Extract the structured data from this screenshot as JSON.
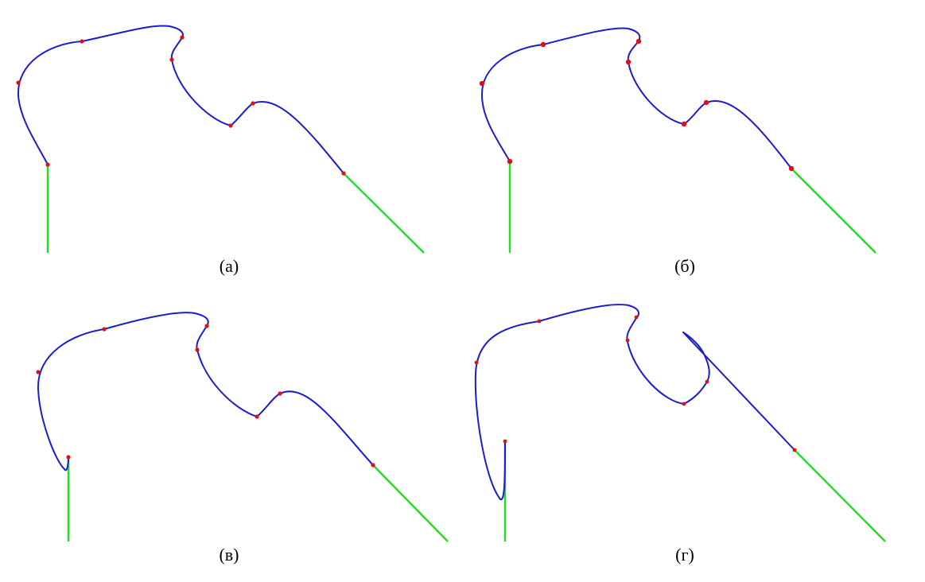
{
  "colors": {
    "curve": "#1c1ccc",
    "tangent": "#22dd22",
    "point": "#e01010",
    "background": "#ffffff"
  },
  "panels": [
    {
      "id": "a",
      "caption": "(а)"
    },
    {
      "id": "b",
      "caption": "(б)"
    },
    {
      "id": "v",
      "caption": "(в)"
    },
    {
      "id": "g",
      "caption": "(г)"
    }
  ]
}
